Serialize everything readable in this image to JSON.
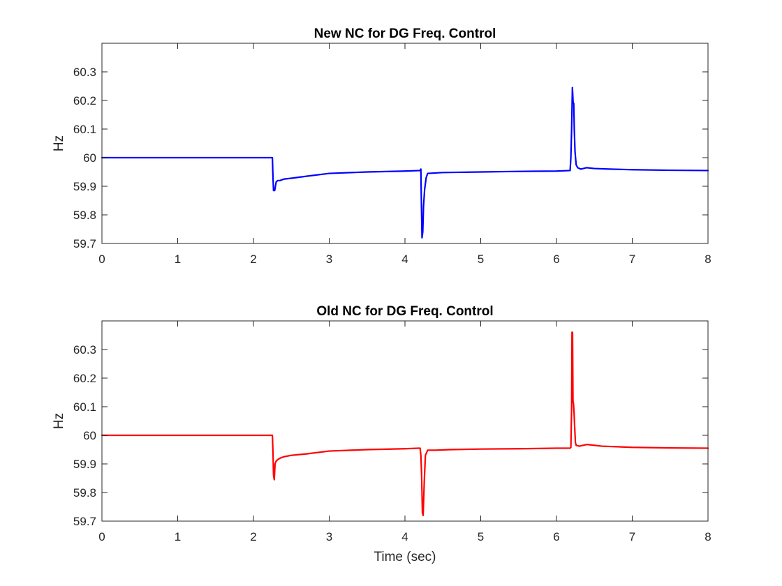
{
  "chart_data": [
    {
      "type": "line",
      "title": "New NC for DG Freq. Control",
      "xlabel": "",
      "ylabel": "Hz",
      "xlim": [
        0,
        8
      ],
      "ylim": [
        59.7,
        60.4
      ],
      "x_ticks": [
        0,
        1,
        2,
        3,
        4,
        5,
        6,
        7,
        8
      ],
      "x_tick_labels": [
        "0",
        "1",
        "2",
        "3",
        "4",
        "5",
        "6",
        "7",
        "8"
      ],
      "y_ticks": [
        59.7,
        59.8,
        59.9,
        60,
        60.1,
        60.2,
        60.3
      ],
      "y_tick_labels": [
        "59.7",
        "59.8",
        "59.9",
        "60",
        "60.1",
        "60.2",
        "60.3"
      ],
      "grid": false,
      "legend": false,
      "series": [
        {
          "color": "#0000ff",
          "x": [
            0,
            2.25,
            2.258,
            2.265,
            2.28,
            2.3,
            2.32,
            2.35,
            2.4,
            2.5,
            2.7,
            3.0,
            3.5,
            4.0,
            4.2,
            4.21,
            4.215,
            4.225,
            4.235,
            4.245,
            4.26,
            4.28,
            4.3,
            4.5,
            5.0,
            5.5,
            6.0,
            6.18,
            6.19,
            6.2,
            6.21,
            6.215,
            6.22,
            6.228,
            6.235,
            6.245,
            6.26,
            6.28,
            6.32,
            6.4,
            6.5,
            6.7,
            7.0,
            7.5,
            8.0
          ],
          "y": [
            60.0,
            60.0,
            59.93,
            59.885,
            59.885,
            59.915,
            59.92,
            59.92,
            59.925,
            59.928,
            59.935,
            59.945,
            59.95,
            59.953,
            59.955,
            59.96,
            59.87,
            59.72,
            59.74,
            59.83,
            59.89,
            59.93,
            59.945,
            59.948,
            59.95,
            59.952,
            59.953,
            59.955,
            60.0,
            60.1,
            60.245,
            60.22,
            60.19,
            60.19,
            60.1,
            60.02,
            59.975,
            59.965,
            59.96,
            59.965,
            59.962,
            59.96,
            59.958,
            59.956,
            59.955
          ]
        }
      ]
    },
    {
      "type": "line",
      "title": "Old NC for DG Freq. Control",
      "xlabel": "Time (sec)",
      "ylabel": "Hz",
      "xlim": [
        0,
        8
      ],
      "ylim": [
        59.7,
        60.4
      ],
      "x_ticks": [
        0,
        1,
        2,
        3,
        4,
        5,
        6,
        7,
        8
      ],
      "x_tick_labels": [
        "0",
        "1",
        "2",
        "3",
        "4",
        "5",
        "6",
        "7",
        "8"
      ],
      "y_ticks": [
        59.7,
        59.8,
        59.9,
        60,
        60.1,
        60.2,
        60.3
      ],
      "y_tick_labels": [
        "59.7",
        "59.8",
        "59.9",
        "60",
        "60.1",
        "60.2",
        "60.3"
      ],
      "grid": false,
      "legend": false,
      "series": [
        {
          "color": "#ff0000",
          "x": [
            0,
            2.25,
            2.258,
            2.265,
            2.275,
            2.285,
            2.3,
            2.32,
            2.35,
            2.4,
            2.5,
            2.7,
            3.0,
            3.5,
            4.0,
            4.18,
            4.2,
            4.21,
            4.22,
            4.23,
            4.24,
            4.255,
            4.27,
            4.3,
            4.4,
            4.6,
            5.0,
            5.5,
            6.0,
            6.18,
            6.19,
            6.2,
            6.205,
            6.212,
            6.218,
            6.225,
            6.232,
            6.24,
            6.25,
            6.26,
            6.3,
            6.4,
            6.6,
            7.0,
            7.5,
            8.0
          ],
          "y": [
            60.0,
            60.0,
            59.94,
            59.86,
            59.845,
            59.9,
            59.91,
            59.915,
            59.92,
            59.925,
            59.93,
            59.935,
            59.945,
            59.95,
            59.953,
            59.955,
            59.955,
            59.93,
            59.86,
            59.73,
            59.72,
            59.84,
            59.93,
            59.948,
            59.948,
            59.95,
            59.952,
            59.953,
            59.955,
            59.955,
            59.958,
            60.1,
            60.36,
            60.36,
            60.12,
            60.11,
            60.08,
            60.03,
            59.975,
            59.965,
            59.962,
            59.968,
            59.962,
            59.958,
            59.956,
            59.955
          ]
        }
      ]
    }
  ]
}
